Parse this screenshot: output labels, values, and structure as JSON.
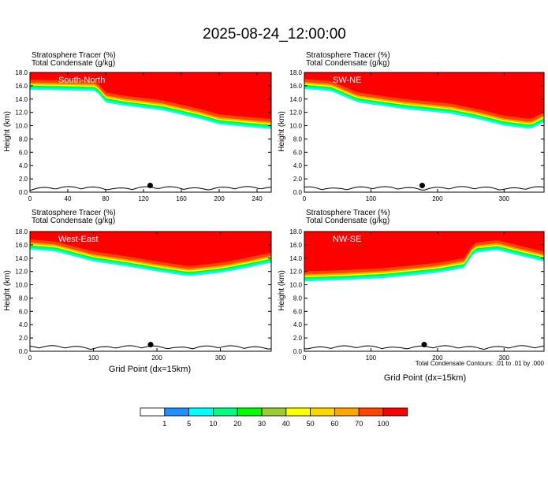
{
  "figure": {
    "title": "2025-08-24_12:00:00",
    "footnote": "Total Condensate Contours: .01 to .01 by .000",
    "colorbar": {
      "colors": [
        "#ffffff",
        "#1e90ff",
        "#00ffff",
        "#00ff7f",
        "#00ff00",
        "#9acd32",
        "#ffff00",
        "#ffd700",
        "#ffa500",
        "#ff4500",
        "#ff0000"
      ],
      "labels": [
        "1",
        "5",
        "10",
        "20",
        "30",
        "40",
        "50",
        "60",
        "70",
        "100"
      ]
    }
  },
  "chart_data": [
    {
      "type": "heatmap",
      "panel": "South-North",
      "header_line1": "Stratosphere Tracer   (%)",
      "header_line2": "Total Condensate   (g/kg)",
      "xlabel": "",
      "ylabel": "Height (km)",
      "xlim": [
        0,
        255
      ],
      "ylim": [
        0,
        18
      ],
      "x_ticks": [
        0,
        40,
        80,
        120,
        160,
        200,
        240
      ],
      "y_ticks": [
        0.0,
        2.0,
        4.0,
        6.0,
        8.0,
        10.0,
        12.0,
        14.0,
        16.0,
        18.0
      ],
      "tracer_base_km": [
        [
          0,
          15.4
        ],
        [
          40,
          15.3
        ],
        [
          70,
          15.2
        ],
        [
          80,
          13.5
        ],
        [
          100,
          13.0
        ],
        [
          140,
          12.3
        ],
        [
          180,
          11.0
        ],
        [
          200,
          10.2
        ],
        [
          230,
          9.8
        ],
        [
          255,
          9.5
        ]
      ],
      "marker_point": [
        127,
        1.0
      ]
    },
    {
      "type": "heatmap",
      "panel": "SW-NE",
      "header_line1": "Stratosphere Tracer   (%)",
      "header_line2": "Total Condensate   (g/kg)",
      "xlabel": "",
      "ylabel": "Height (km)",
      "xlim": [
        0,
        360
      ],
      "ylim": [
        0,
        18
      ],
      "x_ticks": [
        0,
        100,
        200,
        300
      ],
      "y_ticks": [
        0.0,
        2.0,
        4.0,
        6.0,
        8.0,
        10.0,
        12.0,
        14.0,
        16.0,
        18.0
      ],
      "tracer_base_km": [
        [
          0,
          15.5
        ],
        [
          40,
          15.2
        ],
        [
          80,
          13.5
        ],
        [
          150,
          12.5
        ],
        [
          220,
          11.8
        ],
        [
          260,
          11.0
        ],
        [
          300,
          10.0
        ],
        [
          340,
          9.5
        ],
        [
          360,
          10.5
        ]
      ],
      "marker_point": [
        177,
        1.0
      ]
    },
    {
      "type": "heatmap",
      "panel": "West-East",
      "header_line1": "Stratosphere Tracer   (%)",
      "header_line2": "Total Condensate   (g/kg)",
      "xlabel": "Grid Point (dx=15km)",
      "ylabel": "Height (km)",
      "xlim": [
        0,
        380
      ],
      "ylim": [
        0,
        18
      ],
      "x_ticks": [
        0,
        100,
        200,
        300
      ],
      "y_ticks": [
        0.0,
        2.0,
        4.0,
        6.0,
        8.0,
        10.0,
        12.0,
        14.0,
        16.0,
        18.0
      ],
      "tracer_base_km": [
        [
          0,
          15.3
        ],
        [
          40,
          15.0
        ],
        [
          100,
          13.5
        ],
        [
          150,
          12.8
        ],
        [
          200,
          12.0
        ],
        [
          250,
          11.3
        ],
        [
          300,
          11.8
        ],
        [
          340,
          12.5
        ],
        [
          380,
          13.3
        ]
      ],
      "marker_point": [
        190,
        1.0
      ]
    },
    {
      "type": "heatmap",
      "panel": "NW-SE",
      "header_line1": "Stratosphere Tracer   (%)",
      "header_line2": "Total Condensate   (g/kg)",
      "xlabel": "Grid Point (dx=15km)",
      "ylabel": "Height (km)",
      "xlim": [
        0,
        360
      ],
      "ylim": [
        0,
        18
      ],
      "x_ticks": [
        0,
        100,
        200,
        300
      ],
      "y_ticks": [
        0.0,
        2.0,
        4.0,
        6.0,
        8.0,
        10.0,
        12.0,
        14.0,
        16.0,
        18.0
      ],
      "tracer_base_km": [
        [
          0,
          10.5
        ],
        [
          60,
          10.7
        ],
        [
          120,
          11.0
        ],
        [
          200,
          11.8
        ],
        [
          240,
          12.5
        ],
        [
          255,
          14.8
        ],
        [
          290,
          15.2
        ],
        [
          330,
          14.2
        ],
        [
          360,
          13.5
        ]
      ],
      "marker_point": [
        180,
        1.0
      ]
    }
  ]
}
